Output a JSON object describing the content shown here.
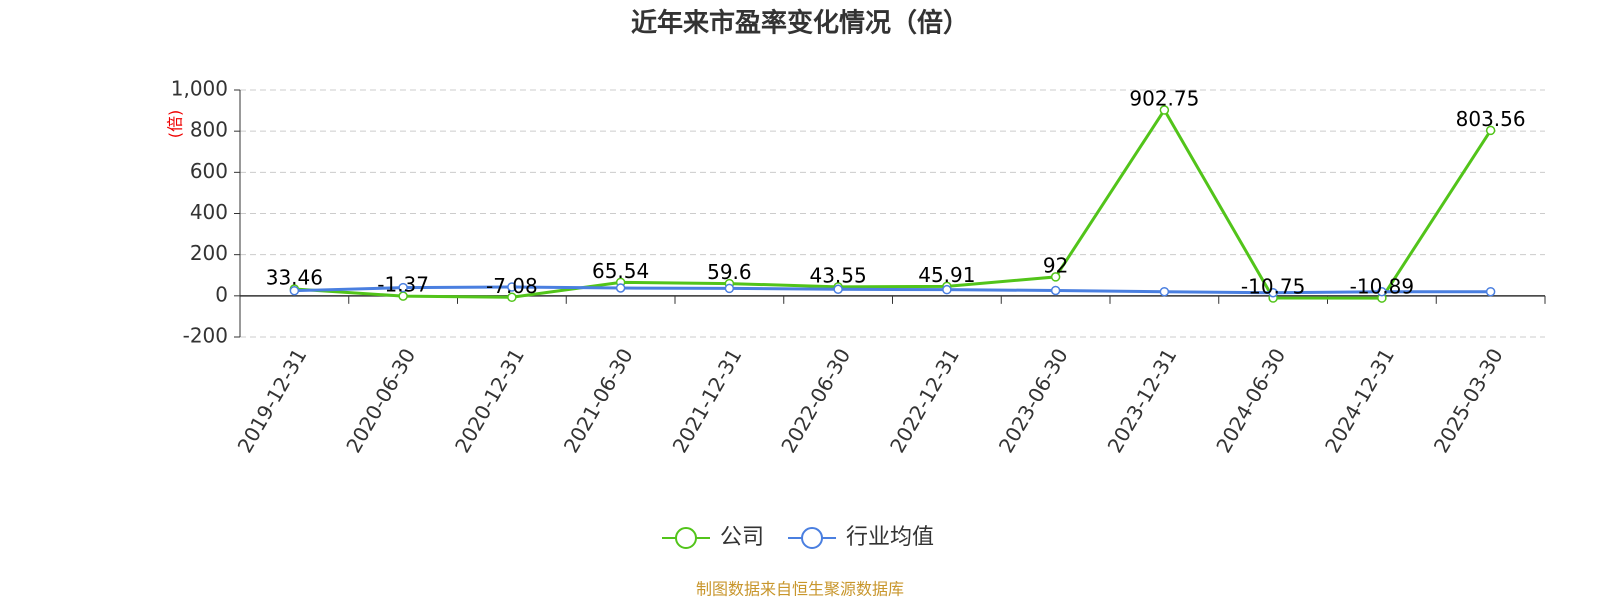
{
  "chart_data": {
    "type": "line",
    "title": "近年来市盈率变化情况（倍）",
    "y_label": "(倍)",
    "source": "制图数据来自恒生聚源数据库",
    "categories": [
      "2019-12-31",
      "2020-06-30",
      "2020-12-31",
      "2021-06-30",
      "2021-12-31",
      "2022-06-30",
      "2022-12-31",
      "2023-06-30",
      "2023-12-31",
      "2024-06-30",
      "2024-12-31",
      "2025-03-30"
    ],
    "series": [
      {
        "name": "公司",
        "color": "#52c41a",
        "show_labels": true,
        "values": [
          33.46,
          -1.37,
          -7.08,
          65.54,
          59.6,
          43.55,
          45.91,
          92,
          902.75,
          -10.75,
          -10.89,
          803.56
        ]
      },
      {
        "name": "行业均值",
        "color": "#4a7fe0",
        "show_labels": false,
        "values": [
          25,
          40,
          43,
          38,
          36,
          32,
          30,
          26,
          20,
          15,
          20,
          20
        ]
      }
    ],
    "ylim": [
      -200,
      1000
    ],
    "yticks": [
      -200,
      0,
      200,
      400,
      600,
      800,
      {
        "value": 1000,
        "label": "1,000"
      }
    ],
    "grid": true,
    "legend": "bottom"
  }
}
